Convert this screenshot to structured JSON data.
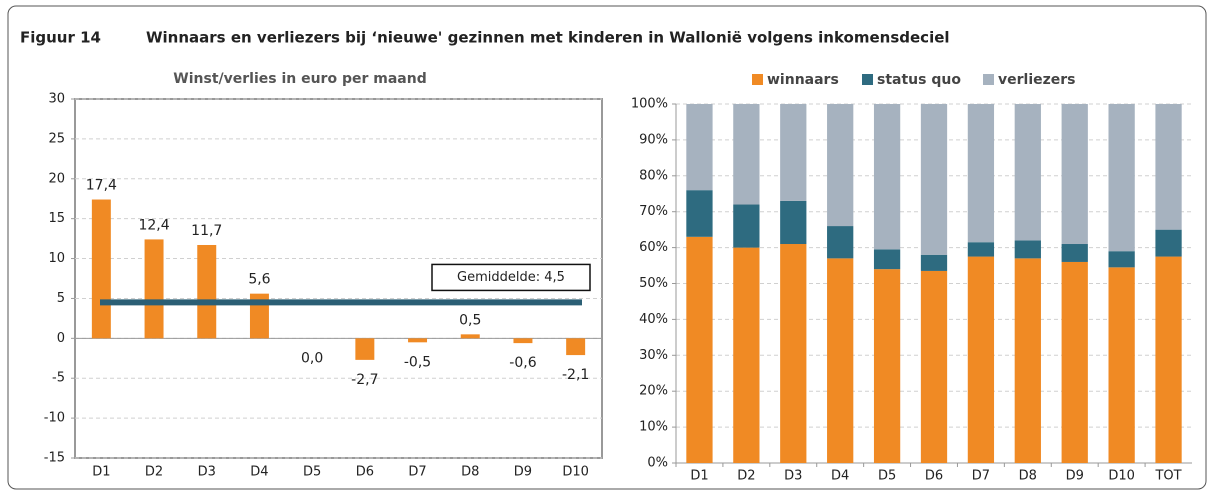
{
  "figure_label": "Figuur 14",
  "title": "Winnaars en verliezers bij ‘nieuwe' gezinnen met kinderen in Wallonië volgens inkomensdeciel",
  "chart_data": [
    {
      "type": "bar",
      "title": "Winst/verlies in euro per maand",
      "categories": [
        "D1",
        "D2",
        "D3",
        "D4",
        "D5",
        "D6",
        "D7",
        "D8",
        "D9",
        "D10"
      ],
      "values": [
        17.4,
        12.4,
        11.7,
        5.6,
        0.0,
        -2.7,
        -0.5,
        0.5,
        -0.6,
        -2.1
      ],
      "value_labels": [
        "17,4",
        "12,4",
        "11,7",
        "5,6",
        "0,0",
        "-2,7",
        "-0,5",
        "0,5",
        "-0,6",
        "-2,1"
      ],
      "color": "#f08a24",
      "ylim": [
        -15,
        30
      ],
      "yticks": [
        -15,
        -10,
        -5,
        0,
        5,
        10,
        15,
        20,
        25,
        30
      ],
      "grid": true,
      "mean": {
        "value": 4.5,
        "label": "Gemiddelde: 4,5",
        "color": "#2b5f75"
      }
    },
    {
      "type": "stacked_bar",
      "categories": [
        "D1",
        "D2",
        "D3",
        "D4",
        "D5",
        "D6",
        "D7",
        "D8",
        "D9",
        "D10",
        "TOT"
      ],
      "series": [
        {
          "name": "winnaars",
          "color": "#f08a24",
          "values": [
            63,
            60,
            61,
            57,
            54,
            53.5,
            57.5,
            57,
            56,
            54.5,
            57.5
          ]
        },
        {
          "name": "status quo",
          "color": "#2e6b80",
          "values": [
            13,
            12,
            12,
            9,
            5.5,
            4.5,
            4,
            5,
            5,
            4.5,
            7.5
          ]
        },
        {
          "name": "verliezers",
          "color": "#a6b2bf",
          "values": [
            24,
            28,
            27,
            34,
            40.5,
            42,
            38.5,
            38,
            39,
            41,
            35
          ]
        }
      ],
      "ylim": [
        0,
        100
      ],
      "yticks": [
        {
          "value": 0,
          "label": "0%"
        },
        {
          "value": 10,
          "label": "10%"
        },
        {
          "value": 20,
          "label": "20%"
        },
        {
          "value": 30,
          "label": "30%"
        },
        {
          "value": 40,
          "label": "40%"
        },
        {
          "value": 50,
          "label": "50%"
        },
        {
          "value": 60,
          "label": "60%"
        },
        {
          "value": 70,
          "label": "70%"
        },
        {
          "value": 80,
          "label": "80%"
        },
        {
          "value": 90,
          "label": "90%"
        },
        {
          "value": 100,
          "label": "100%"
        }
      ],
      "grid": true,
      "legend": "top"
    }
  ]
}
